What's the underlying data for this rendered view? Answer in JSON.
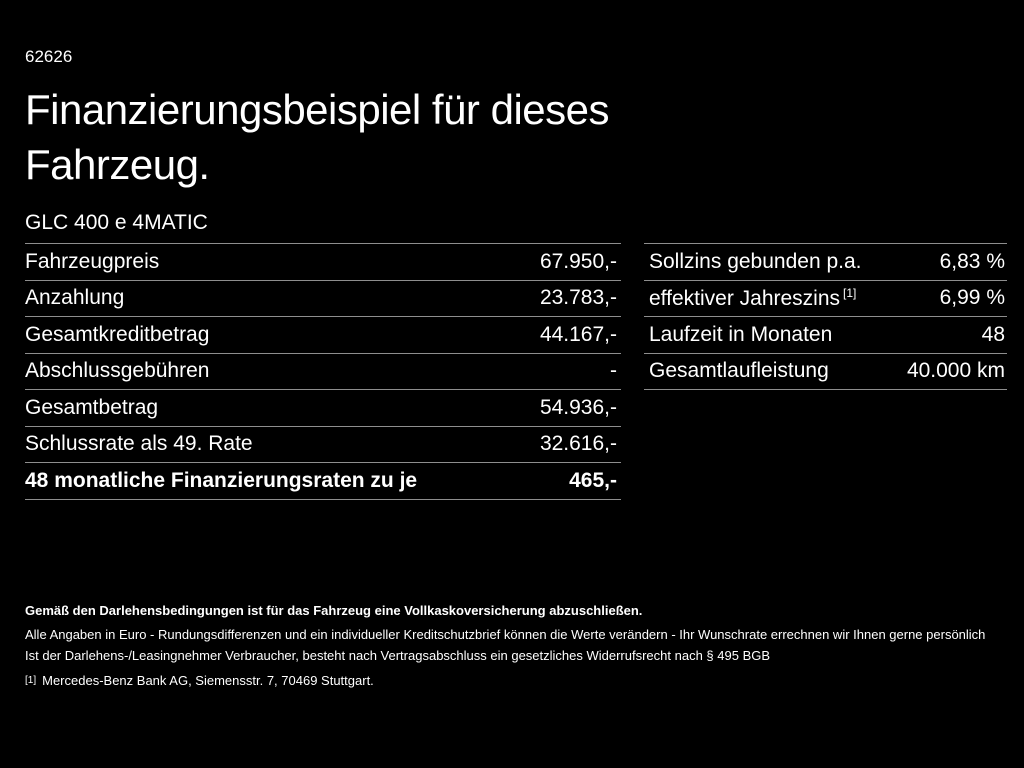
{
  "page": {
    "ref_number": "62626",
    "title": "Finanzierungsbeispiel für dieses Fahrzeug.",
    "vehicle_model": "GLC 400 e 4MATIC"
  },
  "left_table": {
    "rows": [
      {
        "label": "Fahrzeugpreis",
        "value": "67.950,-"
      },
      {
        "label": "Anzahlung",
        "value": "23.783,-"
      },
      {
        "label": "Gesamtkreditbetrag",
        "value": "44.167,-"
      },
      {
        "label": "Abschlussgebühren",
        "value": "-"
      },
      {
        "label": "Gesamtbetrag",
        "value": "54.936,-"
      },
      {
        "label": "Schlussrate als 49. Rate",
        "value": "32.616,-"
      },
      {
        "label": "48 monatliche Finanzierungsraten zu je",
        "value": "465,-"
      }
    ]
  },
  "right_table": {
    "rows": [
      {
        "label": "Sollzins gebunden p.a.",
        "value": "6,83 %"
      },
      {
        "label": "effektiver Jahreszins",
        "label_sup": "[1]",
        "value": "6,99 %"
      },
      {
        "label": "Laufzeit in Monaten",
        "value": "48"
      },
      {
        "label": "Gesamtlaufleistung",
        "value": "40.000 km"
      }
    ]
  },
  "footer": {
    "line1": "Gemäß den Darlehensbedingungen ist für das Fahrzeug eine Vollkaskoversicherung abzuschließen.",
    "line2": "Alle Angaben in Euro - Rundungsdifferenzen und ein individueller Kreditschutzbrief können die Werte verändern - Ihr Wunschrate errechnen wir Ihnen gerne persönlich",
    "line3": "Ist der Darlehens-/Leasingnehmer Verbraucher, besteht nach Vertragsabschluss ein gesetzliches Widerrufsrecht nach § 495 BGB",
    "footnote_marker": "[1]",
    "footnote_text": "Mercedes-Benz Bank AG, Siemensstr. 7, 70469 Stuttgart."
  },
  "colors": {
    "background": "#000000",
    "text": "#ffffff",
    "divider": "#8e8e8e"
  }
}
